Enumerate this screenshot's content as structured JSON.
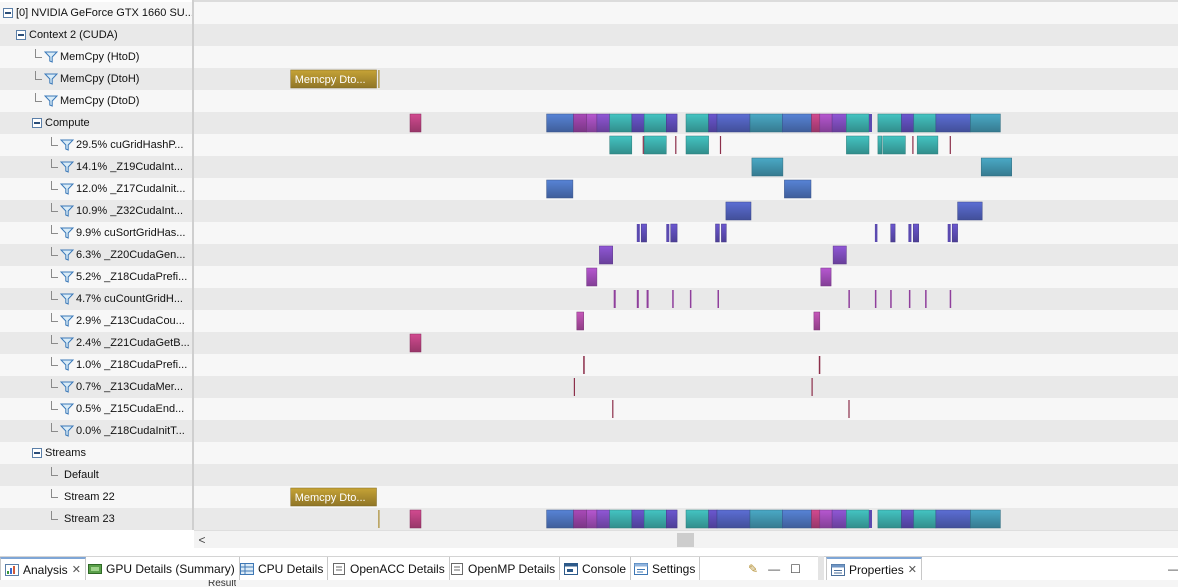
{
  "tree": {
    "rows": [
      {
        "label": "[0] NVIDIA GeForce GTX 1660 SU...",
        "kind": "expand",
        "indent": 0
      },
      {
        "label": "Context 2 (CUDA)",
        "kind": "expand",
        "indent": 1
      },
      {
        "label": "MemCpy (HtoD)",
        "kind": "filter",
        "indent": 2
      },
      {
        "label": "MemCpy (DtoH)",
        "kind": "filter",
        "indent": 2
      },
      {
        "label": "MemCpy (DtoD)",
        "kind": "filter",
        "indent": 2
      },
      {
        "label": "Compute",
        "kind": "expand",
        "indent": 2
      },
      {
        "label": "29.5% cuGridHashP...",
        "kind": "filter",
        "indent": 3
      },
      {
        "label": "14.1% _Z19CudaInt...",
        "kind": "filter",
        "indent": 3
      },
      {
        "label": "12.0% _Z17CudaInit...",
        "kind": "filter",
        "indent": 3
      },
      {
        "label": "10.9% _Z32CudaInt...",
        "kind": "filter",
        "indent": 3
      },
      {
        "label": "9.9% cuSortGridHas...",
        "kind": "filter",
        "indent": 3
      },
      {
        "label": "6.3% _Z20CudaGen...",
        "kind": "filter",
        "indent": 3
      },
      {
        "label": "5.2% _Z18CudaPrefi...",
        "kind": "filter",
        "indent": 3
      },
      {
        "label": "4.7% cuCountGridH...",
        "kind": "filter",
        "indent": 3
      },
      {
        "label": "2.9% _Z13CudaCou...",
        "kind": "filter",
        "indent": 3
      },
      {
        "label": "2.4% _Z21CudaGetB...",
        "kind": "filter",
        "indent": 3
      },
      {
        "label": "1.0% _Z18CudaPrefi...",
        "kind": "filter",
        "indent": 3
      },
      {
        "label": "0.7% _Z13CudaMer...",
        "kind": "filter",
        "indent": 3
      },
      {
        "label": "0.5% _Z15CudaEnd...",
        "kind": "filter",
        "indent": 3
      },
      {
        "label": "0.0% _Z18CudaInitT...",
        "kind": "filter",
        "indent": 3
      },
      {
        "label": "Streams",
        "kind": "expand",
        "indent": 2
      },
      {
        "label": "Default",
        "kind": "leaf",
        "indent": 3
      },
      {
        "label": "Stream 22",
        "kind": "leaf",
        "indent": 3
      },
      {
        "label": "Stream 23",
        "kind": "leaf",
        "indent": 3
      }
    ]
  },
  "timeline": {
    "memcpy_label": "Memcpy Dto...",
    "colors": {
      "memcpy": "#a88a2e",
      "hash": "#3aa6a4",
      "int19": "#3f8fa8",
      "init17": "#4a6fb5",
      "int32": "#4e5db4",
      "sort": "#5b4ab0",
      "gen20": "#7a4ab5",
      "prefix18": "#9a4ab0",
      "count": "#8f3f9c",
      "cou13": "#a84a9e",
      "getb21": "#b23f7a",
      "thin": "#8c2f4a"
    },
    "lanes": {
      "1": [],
      "3": [
        {
          "t0": 0.0983,
          "t1": 0.1855,
          "c": "memcpy",
          "label": true
        },
        {
          "t0": 0.1873,
          "t1": 0.1883,
          "c": "memcpy"
        }
      ],
      "5": [
        {
          "t0": 0.2195,
          "t1": 0.2307,
          "c": "getb21"
        },
        {
          "t0": 0.3583,
          "t1": 0.3857,
          "c": "init17"
        },
        {
          "t0": 0.3857,
          "t1": 0.399,
          "c": "count"
        },
        {
          "t0": 0.399,
          "t1": 0.4095,
          "c": "prefix18"
        },
        {
          "t0": 0.4095,
          "t1": 0.4225,
          "c": "gen20"
        },
        {
          "t0": 0.4225,
          "t1": 0.445,
          "c": "hash"
        },
        {
          "t0": 0.445,
          "t1": 0.4575,
          "c": "sort"
        },
        {
          "t0": 0.4575,
          "t1": 0.48,
          "c": "hash"
        },
        {
          "t0": 0.48,
          "t1": 0.491,
          "c": "sort"
        },
        {
          "t0": 0.5,
          "t1": 0.523,
          "c": "hash"
        },
        {
          "t0": 0.523,
          "t1": 0.5315,
          "c": "sort"
        },
        {
          "t0": 0.5315,
          "t1": 0.565,
          "c": "int32"
        },
        {
          "t0": 0.565,
          "t1": 0.598,
          "c": "int19"
        },
        {
          "t0": 0.598,
          "t1": 0.6275,
          "c": "init17"
        },
        {
          "t0": 0.6275,
          "t1": 0.636,
          "c": "getb21"
        },
        {
          "t0": 0.636,
          "t1": 0.6485,
          "c": "prefix18"
        },
        {
          "t0": 0.6485,
          "t1": 0.663,
          "c": "gen20"
        },
        {
          "t0": 0.663,
          "t1": 0.686,
          "c": "hash"
        },
        {
          "t0": 0.686,
          "t1": 0.689,
          "c": "sort"
        },
        {
          "t0": 0.695,
          "t1": 0.719,
          "c": "hash"
        },
        {
          "t0": 0.719,
          "t1": 0.7315,
          "c": "sort"
        },
        {
          "t0": 0.7315,
          "t1": 0.754,
          "c": "hash"
        },
        {
          "t0": 0.754,
          "t1": 0.789,
          "c": "int32"
        },
        {
          "t0": 0.789,
          "t1": 0.8195,
          "c": "int19"
        }
      ],
      "6": [
        {
          "t0": 0.4225,
          "t1": 0.445,
          "c": "hash"
        },
        {
          "t0": 0.456,
          "t1": 0.457,
          "c": "thin"
        },
        {
          "t0": 0.4575,
          "t1": 0.48,
          "c": "hash"
        },
        {
          "t0": 0.489,
          "t1": 0.49,
          "c": "thin"
        },
        {
          "t0": 0.5,
          "t1": 0.523,
          "c": "hash"
        },
        {
          "t0": 0.5345,
          "t1": 0.5355,
          "c": "thin"
        },
        {
          "t0": 0.663,
          "t1": 0.686,
          "c": "hash"
        },
        {
          "t0": 0.695,
          "t1": 0.699,
          "c": "hash"
        },
        {
          "t0": 0.7,
          "t1": 0.723,
          "c": "hash"
        },
        {
          "t0": 0.73,
          "t1": 0.731,
          "c": "thin"
        },
        {
          "t0": 0.735,
          "t1": 0.756,
          "c": "hash"
        },
        {
          "t0": 0.768,
          "t1": 0.769,
          "c": "thin"
        }
      ],
      "7": [
        {
          "t0": 0.567,
          "t1": 0.5985,
          "c": "int19"
        },
        {
          "t0": 0.8,
          "t1": 0.831,
          "c": "int19"
        }
      ],
      "8": [
        {
          "t0": 0.3583,
          "t1": 0.385,
          "c": "init17"
        },
        {
          "t0": 0.6,
          "t1": 0.627,
          "c": "init17"
        }
      ],
      "9": [
        {
          "t0": 0.5405,
          "t1": 0.566,
          "c": "int32"
        },
        {
          "t0": 0.776,
          "t1": 0.801,
          "c": "int32"
        }
      ],
      "10": [
        {
          "t0": 0.45,
          "t1": 0.453,
          "c": "sort"
        },
        {
          "t0": 0.4545,
          "t1": 0.46,
          "c": "sort"
        },
        {
          "t0": 0.48,
          "t1": 0.483,
          "c": "sort"
        },
        {
          "t0": 0.4845,
          "t1": 0.491,
          "c": "sort"
        },
        {
          "t0": 0.53,
          "t1": 0.534,
          "c": "sort"
        },
        {
          "t0": 0.536,
          "t1": 0.541,
          "c": "sort"
        },
        {
          "t0": 0.692,
          "t1": 0.6945,
          "c": "sort"
        },
        {
          "t0": 0.708,
          "t1": 0.7125,
          "c": "sort"
        },
        {
          "t0": 0.726,
          "t1": 0.729,
          "c": "sort"
        },
        {
          "t0": 0.731,
          "t1": 0.7365,
          "c": "sort"
        },
        {
          "t0": 0.766,
          "t1": 0.769,
          "c": "sort"
        },
        {
          "t0": 0.7705,
          "t1": 0.776,
          "c": "sort"
        }
      ],
      "11": [
        {
          "t0": 0.412,
          "t1": 0.4255,
          "c": "gen20"
        },
        {
          "t0": 0.6495,
          "t1": 0.663,
          "c": "gen20"
        }
      ],
      "12": [
        {
          "t0": 0.399,
          "t1": 0.4095,
          "c": "prefix18"
        },
        {
          "t0": 0.637,
          "t1": 0.6475,
          "c": "prefix18"
        }
      ],
      "13": [
        {
          "t0": 0.4265,
          "t1": 0.4285,
          "c": "count"
        },
        {
          "t0": 0.45,
          "t1": 0.452,
          "c": "count"
        },
        {
          "t0": 0.46,
          "t1": 0.462,
          "c": "count"
        },
        {
          "t0": 0.486,
          "t1": 0.4875,
          "c": "count"
        },
        {
          "t0": 0.504,
          "t1": 0.5055,
          "c": "count"
        },
        {
          "t0": 0.532,
          "t1": 0.5335,
          "c": "count"
        },
        {
          "t0": 0.665,
          "t1": 0.6665,
          "c": "count"
        },
        {
          "t0": 0.692,
          "t1": 0.6935,
          "c": "count"
        },
        {
          "t0": 0.7075,
          "t1": 0.709,
          "c": "count"
        },
        {
          "t0": 0.7265,
          "t1": 0.728,
          "c": "count"
        },
        {
          "t0": 0.743,
          "t1": 0.7445,
          "c": "count"
        },
        {
          "t0": 0.768,
          "t1": 0.7695,
          "c": "count"
        }
      ],
      "14": [
        {
          "t0": 0.389,
          "t1": 0.396,
          "c": "cou13"
        },
        {
          "t0": 0.63,
          "t1": 0.636,
          "c": "cou13"
        }
      ],
      "15": [
        {
          "t0": 0.2195,
          "t1": 0.2307,
          "c": "getb21"
        }
      ],
      "16": [
        {
          "t0": 0.3955,
          "t1": 0.397,
          "c": "thin"
        },
        {
          "t0": 0.635,
          "t1": 0.6365,
          "c": "thin"
        }
      ],
      "17": [
        {
          "t0": 0.386,
          "t1": 0.3872,
          "c": "thin"
        },
        {
          "t0": 0.6275,
          "t1": 0.6287,
          "c": "thin"
        }
      ],
      "18": [
        {
          "t0": 0.425,
          "t1": 0.4262,
          "c": "thin"
        },
        {
          "t0": 0.665,
          "t1": 0.6662,
          "c": "thin"
        }
      ],
      "22": [
        {
          "t0": 0.0983,
          "t1": 0.1855,
          "c": "memcpy",
          "label": true
        }
      ],
      "23": [
        {
          "t0": 0.1873,
          "t1": 0.1883,
          "c": "memcpy"
        },
        {
          "t0": 0.2195,
          "t1": 0.2307,
          "c": "getb21"
        },
        {
          "t0": 0.3583,
          "t1": 0.3857,
          "c": "init17"
        },
        {
          "t0": 0.3857,
          "t1": 0.399,
          "c": "count"
        },
        {
          "t0": 0.399,
          "t1": 0.4095,
          "c": "prefix18"
        },
        {
          "t0": 0.4095,
          "t1": 0.4225,
          "c": "gen20"
        },
        {
          "t0": 0.4225,
          "t1": 0.445,
          "c": "hash"
        },
        {
          "t0": 0.445,
          "t1": 0.4575,
          "c": "sort"
        },
        {
          "t0": 0.4575,
          "t1": 0.48,
          "c": "hash"
        },
        {
          "t0": 0.48,
          "t1": 0.491,
          "c": "sort"
        },
        {
          "t0": 0.5,
          "t1": 0.523,
          "c": "hash"
        },
        {
          "t0": 0.523,
          "t1": 0.5315,
          "c": "sort"
        },
        {
          "t0": 0.5315,
          "t1": 0.565,
          "c": "int32"
        },
        {
          "t0": 0.565,
          "t1": 0.598,
          "c": "int19"
        },
        {
          "t0": 0.598,
          "t1": 0.6275,
          "c": "init17"
        },
        {
          "t0": 0.6275,
          "t1": 0.636,
          "c": "getb21"
        },
        {
          "t0": 0.636,
          "t1": 0.6485,
          "c": "prefix18"
        },
        {
          "t0": 0.6485,
          "t1": 0.663,
          "c": "gen20"
        },
        {
          "t0": 0.663,
          "t1": 0.686,
          "c": "hash"
        },
        {
          "t0": 0.686,
          "t1": 0.689,
          "c": "sort"
        },
        {
          "t0": 0.695,
          "t1": 0.719,
          "c": "hash"
        },
        {
          "t0": 0.719,
          "t1": 0.7315,
          "c": "sort"
        },
        {
          "t0": 0.7315,
          "t1": 0.754,
          "c": "hash"
        },
        {
          "t0": 0.754,
          "t1": 0.789,
          "c": "int32"
        },
        {
          "t0": 0.789,
          "t1": 0.8195,
          "c": "int19"
        }
      ]
    }
  },
  "scrollbar": {
    "left_arrow": "<"
  },
  "tabs": [
    {
      "label": "Analysis",
      "icon": "analysis-icon",
      "closable": true,
      "active": true
    },
    {
      "label": "GPU Details (Summary)",
      "icon": "gpu-details-icon"
    },
    {
      "label": "CPU Details",
      "icon": "cpu-details-icon"
    },
    {
      "label": "OpenACC Details",
      "icon": "openacc-icon"
    },
    {
      "label": "OpenMP Details",
      "icon": "openmp-icon"
    },
    {
      "label": "Console",
      "icon": "console-icon"
    },
    {
      "label": "Settings",
      "icon": "settings-icon"
    }
  ],
  "properties_tab": {
    "label": "Properties",
    "icon": "properties-icon"
  },
  "tab_tools": {
    "minimize": "—",
    "maximize": "☐"
  },
  "below": {
    "result_label": "Result"
  }
}
